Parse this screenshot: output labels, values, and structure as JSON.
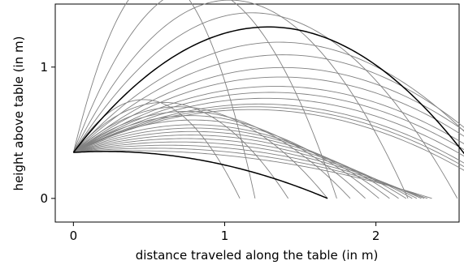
{
  "chart_data": {
    "type": "line",
    "xlabel": "distance traveled along the table (in m)",
    "ylabel": "height above table (in m)",
    "xlim": [
      -0.12,
      2.55
    ],
    "ylim": [
      -0.18,
      1.48
    ],
    "x_ticks": [
      0,
      1,
      2
    ],
    "x_tick_labels": [
      "0",
      "1",
      "2"
    ],
    "y_ticks": [
      0,
      1
    ],
    "y_tick_labels": [
      "0",
      "1"
    ],
    "grid": false,
    "launch_height": 0.35,
    "gravity": 9.8,
    "background": "#ffffff",
    "trajectory_color": "#808080",
    "highlight_color": "#000000",
    "fan_a": {
      "speed": 5.22,
      "angles_deg": [
        78,
        72,
        66,
        61,
        56,
        51,
        47,
        43,
        40,
        37,
        35,
        33,
        31,
        30,
        29
      ]
    },
    "fan_b": {
      "angles_deg": [
        60,
        52,
        45,
        40,
        36,
        32,
        28,
        25,
        22,
        19,
        16,
        13,
        10,
        7,
        4
      ],
      "landing_x": [
        1.1,
        1.42,
        1.68,
        1.83,
        1.93,
        2.02,
        2.09,
        2.15,
        2.2,
        2.24,
        2.27,
        2.3,
        2.32,
        2.34,
        2.37
      ]
    },
    "highlight_curves": [
      {
        "name": "",
        "angle_deg": 56,
        "speed": 5.22
      },
      {
        "name": "",
        "angle_deg": 4,
        "landing_x": 1.68
      }
    ]
  }
}
